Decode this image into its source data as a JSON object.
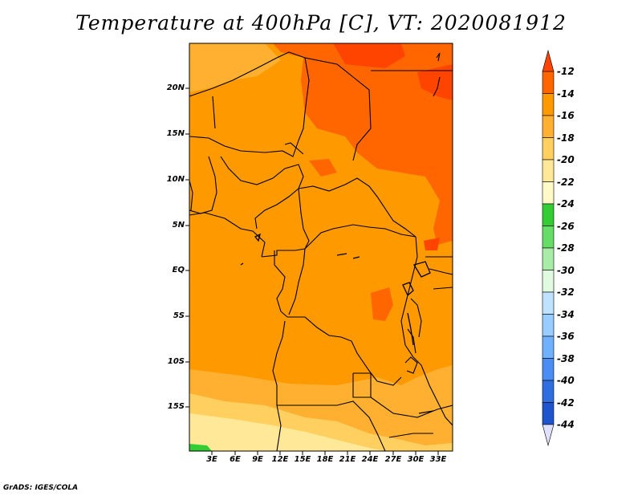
{
  "title": "Temperature at 400hPa [C], VT: 2020081912",
  "footer": "GrADS: IGES/COLA",
  "map": {
    "lat_labels": [
      "20N",
      "15N",
      "10N",
      "5N",
      "EQ",
      "5S",
      "10S",
      "15S"
    ],
    "lon_labels": [
      "3E",
      "6E",
      "9E",
      "12E",
      "15E",
      "18E",
      "21E",
      "24E",
      "27E",
      "30E",
      "33E"
    ]
  },
  "colorbar": {
    "labels": [
      "-12",
      "-14",
      "-16",
      "-18",
      "-20",
      "-22",
      "-24",
      "-26",
      "-28",
      "-30",
      "-32",
      "-34",
      "-36",
      "-38",
      "-40",
      "-42",
      "-44"
    ],
    "colors": [
      "#ff3300",
      "#ff6600",
      "#ff9900",
      "#ffb030",
      "#ffd060",
      "#ffe898",
      "#fffac8",
      "#33cc33",
      "#66dd66",
      "#a8eca8",
      "#e0fbe0",
      "#e8f8ff",
      "#bfe3ff",
      "#99ccff",
      "#6fb0ff",
      "#4a8df5",
      "#2f6ee0",
      "#1f55cc",
      "#1238a8",
      "#0a1f80",
      "#e0e0ff"
    ],
    "colors_note": "",
    "top_arrow_color": "#ff4400",
    "bottom_arrow_color": "#e0e0ff"
  },
  "field_colors": {
    "warm_peak": "#ff4400",
    "warm": "#ff6600",
    "main": "#ff9900",
    "cool1": "#ffb030",
    "cool2": "#ffd060",
    "cool3": "#ffe898",
    "green": "#33cc33",
    "border": "#000000"
  }
}
